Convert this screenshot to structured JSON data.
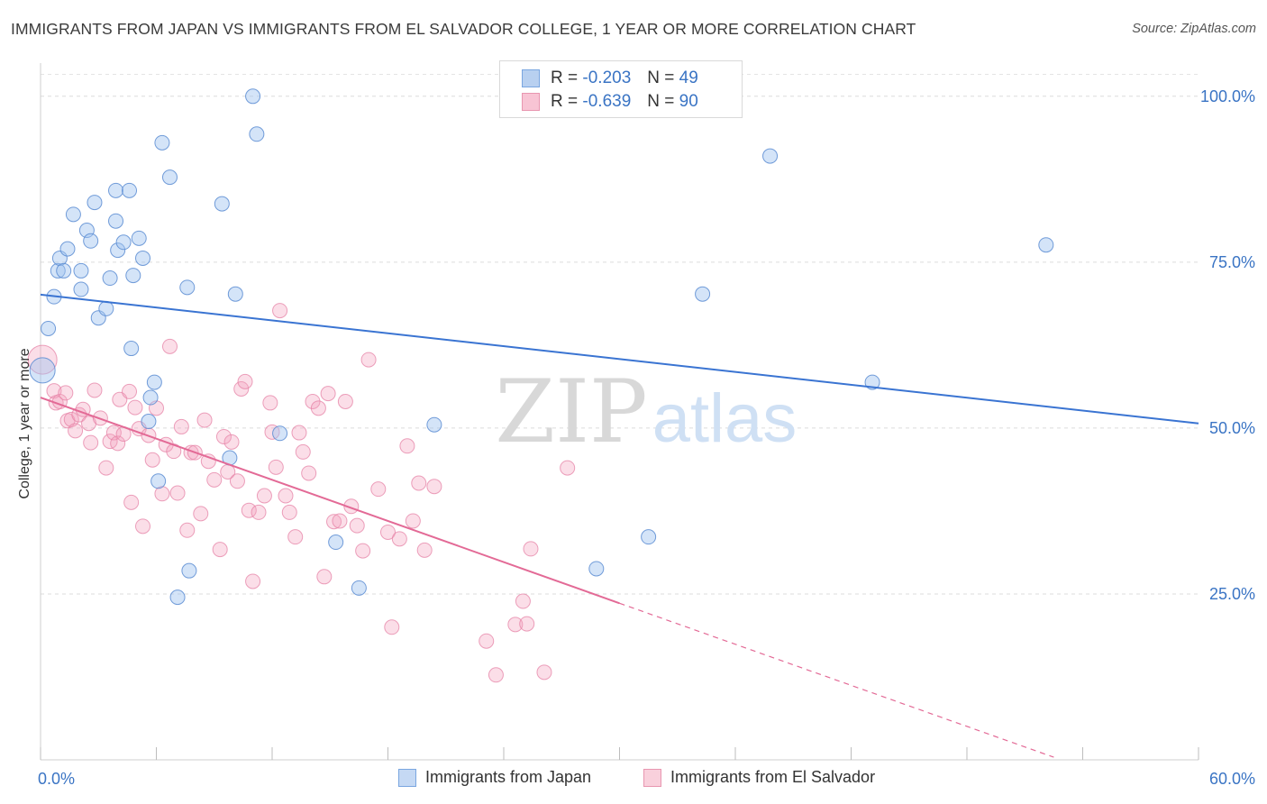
{
  "title": "IMMIGRANTS FROM JAPAN VS IMMIGRANTS FROM EL SALVADOR COLLEGE, 1 YEAR OR MORE CORRELATION CHART",
  "source": "Source: ZipAtlas.com",
  "watermark": {
    "zip": "ZIP",
    "atlas": "atlas"
  },
  "legend": {
    "r_label": "R =",
    "n_label": "N =",
    "rows": [
      {
        "r": "-0.203",
        "n": "49",
        "fill": "#b8d0f0",
        "stroke": "#7aa6e0"
      },
      {
        "r": "-0.639",
        "n": "90",
        "fill": "#f8c4d4",
        "stroke": "#e896b0"
      }
    ]
  },
  "bottom_legend": [
    {
      "label": "Immigrants from Japan",
      "fill": "#c5d9f4",
      "stroke": "#7aa6e0"
    },
    {
      "label": "Immigrants from El Salvador",
      "fill": "#f9d0dc",
      "stroke": "#e896b0"
    }
  ],
  "chart_data": {
    "type": "scatter",
    "xlabel": "",
    "ylabel": "College, 1 year or more",
    "xlim": [
      0,
      60
    ],
    "ylim": [
      0,
      105
    ],
    "x_tick_labels": [
      "0.0%",
      "60.0%"
    ],
    "y_ticks": [
      25,
      50,
      75,
      100
    ],
    "y_tick_labels": [
      "25.0%",
      "50.0%",
      "75.0%",
      "100.0%"
    ],
    "grid": true,
    "colors": {
      "japan": "#3a74d2",
      "salvador": "#e36a96",
      "axis_text": "#3a74c4"
    },
    "series": [
      {
        "name": "Immigrants from Japan",
        "trend": {
          "x": [
            0,
            60
          ],
          "y": [
            70.1,
            50.7
          ]
        },
        "points": [
          [
            0.1,
            58.7
          ],
          [
            0.4,
            65.0
          ],
          [
            0.7,
            69.8
          ],
          [
            0.9,
            73.7
          ],
          [
            1.0,
            75.6
          ],
          [
            1.2,
            73.7
          ],
          [
            1.4,
            77.0
          ],
          [
            1.7,
            82.2
          ],
          [
            2.1,
            70.9
          ],
          [
            2.1,
            73.7
          ],
          [
            2.4,
            79.8
          ],
          [
            2.6,
            78.2
          ],
          [
            2.8,
            84.0
          ],
          [
            3.0,
            66.6
          ],
          [
            3.4,
            68.0
          ],
          [
            3.6,
            72.6
          ],
          [
            3.9,
            81.2
          ],
          [
            3.9,
            85.8
          ],
          [
            4.0,
            76.8
          ],
          [
            4.3,
            78.0
          ],
          [
            4.6,
            85.8
          ],
          [
            4.7,
            62.0
          ],
          [
            4.8,
            73.0
          ],
          [
            5.1,
            78.6
          ],
          [
            5.3,
            75.6
          ],
          [
            5.6,
            51.0
          ],
          [
            5.7,
            54.6
          ],
          [
            5.9,
            56.9
          ],
          [
            6.1,
            42.0
          ],
          [
            6.3,
            93.0
          ],
          [
            6.7,
            87.8
          ],
          [
            7.1,
            24.5
          ],
          [
            7.6,
            71.2
          ],
          [
            7.7,
            28.5
          ],
          [
            9.4,
            83.8
          ],
          [
            9.8,
            45.5
          ],
          [
            10.1,
            70.2
          ],
          [
            11.0,
            100.0
          ],
          [
            11.2,
            94.3
          ],
          [
            12.4,
            49.2
          ],
          [
            15.3,
            32.8
          ],
          [
            16.5,
            25.9
          ],
          [
            20.4,
            50.5
          ],
          [
            28.8,
            28.8
          ],
          [
            31.5,
            33.6
          ],
          [
            34.3,
            70.2
          ],
          [
            37.8,
            91.0
          ],
          [
            43.1,
            56.9
          ],
          [
            52.1,
            77.6
          ]
        ]
      },
      {
        "name": "Immigrants from El Salvador",
        "trend": {
          "x": [
            0,
            30.0
          ],
          "y": [
            54.6,
            23.6
          ],
          "dash_x": [
            30.0,
            52.5
          ],
          "dash_y": [
            23.6,
            0.4
          ]
        },
        "points": [
          [
            0.1,
            60.3
          ],
          [
            0.7,
            55.6
          ],
          [
            0.8,
            53.8
          ],
          [
            1.0,
            54.0
          ],
          [
            1.3,
            55.3
          ],
          [
            1.4,
            51.1
          ],
          [
            1.6,
            51.3
          ],
          [
            1.8,
            49.6
          ],
          [
            2.0,
            52.0
          ],
          [
            2.2,
            52.8
          ],
          [
            2.5,
            50.7
          ],
          [
            2.6,
            47.8
          ],
          [
            2.8,
            55.7
          ],
          [
            3.1,
            51.5
          ],
          [
            3.4,
            44.0
          ],
          [
            3.6,
            48.0
          ],
          [
            3.8,
            49.3
          ],
          [
            4.0,
            47.7
          ],
          [
            4.1,
            54.3
          ],
          [
            4.3,
            49.1
          ],
          [
            4.6,
            55.5
          ],
          [
            4.7,
            38.8
          ],
          [
            4.9,
            53.1
          ],
          [
            5.1,
            49.9
          ],
          [
            5.3,
            35.2
          ],
          [
            5.6,
            48.9
          ],
          [
            5.8,
            45.2
          ],
          [
            6.0,
            53.0
          ],
          [
            6.3,
            40.1
          ],
          [
            6.5,
            47.5
          ],
          [
            6.7,
            62.3
          ],
          [
            6.9,
            46.5
          ],
          [
            7.1,
            40.2
          ],
          [
            7.3,
            50.2
          ],
          [
            7.6,
            34.6
          ],
          [
            7.8,
            46.3
          ],
          [
            8.0,
            46.3
          ],
          [
            8.3,
            37.1
          ],
          [
            8.5,
            51.2
          ],
          [
            8.7,
            45.0
          ],
          [
            9.0,
            42.2
          ],
          [
            9.3,
            31.7
          ],
          [
            9.5,
            48.7
          ],
          [
            9.7,
            43.4
          ],
          [
            9.9,
            47.9
          ],
          [
            10.2,
            42.0
          ],
          [
            10.4,
            55.9
          ],
          [
            10.6,
            57.0
          ],
          [
            10.8,
            37.6
          ],
          [
            11.0,
            26.9
          ],
          [
            11.3,
            37.3
          ],
          [
            11.6,
            39.8
          ],
          [
            11.9,
            53.8
          ],
          [
            12.0,
            49.4
          ],
          [
            12.2,
            44.1
          ],
          [
            12.4,
            67.7
          ],
          [
            12.7,
            39.8
          ],
          [
            12.9,
            37.3
          ],
          [
            13.2,
            33.6
          ],
          [
            13.4,
            49.3
          ],
          [
            13.6,
            46.4
          ],
          [
            13.9,
            43.2
          ],
          [
            14.1,
            54.0
          ],
          [
            14.4,
            53.0
          ],
          [
            14.7,
            27.6
          ],
          [
            14.9,
            55.2
          ],
          [
            15.2,
            35.9
          ],
          [
            15.5,
            36.0
          ],
          [
            15.8,
            54.0
          ],
          [
            16.1,
            38.2
          ],
          [
            16.4,
            35.3
          ],
          [
            16.7,
            31.5
          ],
          [
            17.0,
            60.3
          ],
          [
            17.5,
            40.8
          ],
          [
            18.0,
            34.3
          ],
          [
            18.2,
            20.0
          ],
          [
            18.6,
            33.3
          ],
          [
            19.0,
            47.3
          ],
          [
            19.3,
            36.0
          ],
          [
            19.6,
            41.7
          ],
          [
            19.9,
            31.6
          ],
          [
            20.4,
            41.2
          ],
          [
            23.1,
            17.9
          ],
          [
            23.6,
            12.8
          ],
          [
            24.6,
            20.4
          ],
          [
            25.0,
            23.9
          ],
          [
            25.2,
            20.5
          ],
          [
            25.4,
            31.8
          ],
          [
            26.1,
            13.2
          ],
          [
            27.3,
            44.0
          ]
        ]
      }
    ]
  }
}
